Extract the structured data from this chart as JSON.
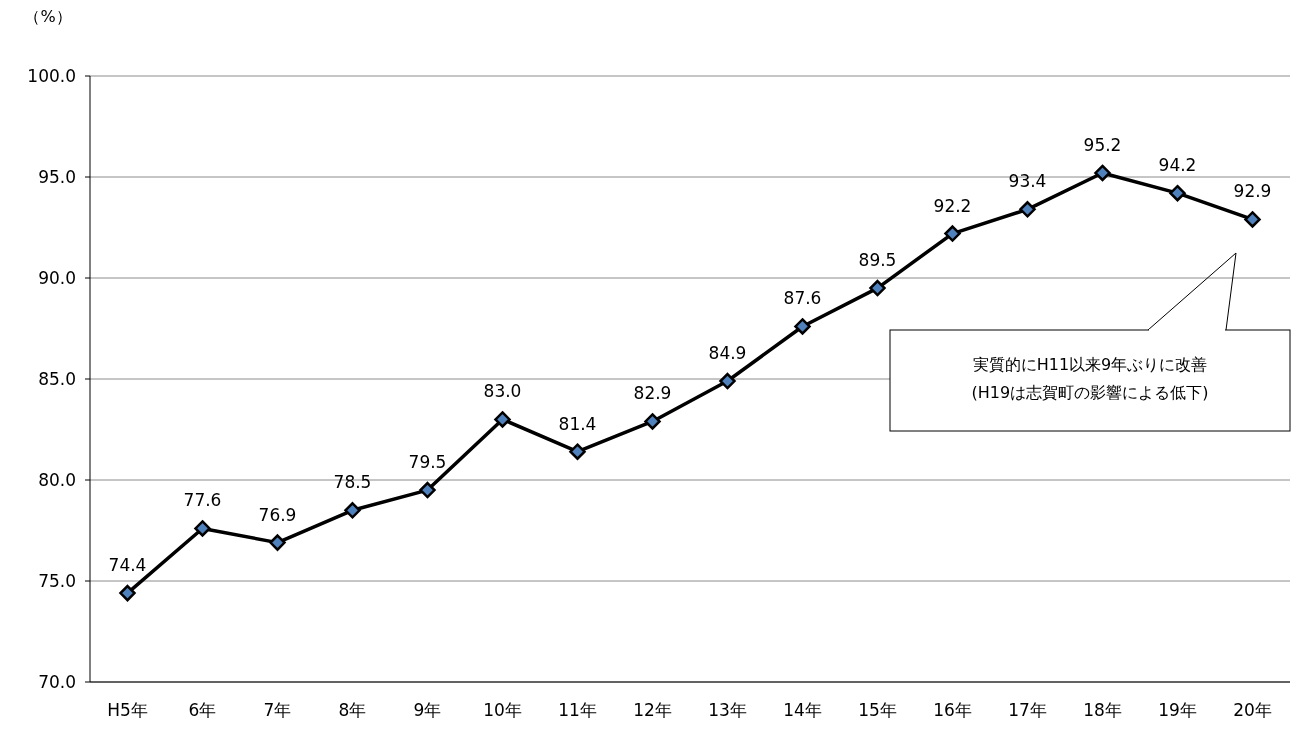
{
  "chart_data": {
    "type": "line",
    "ylabel": "（%）",
    "categories": [
      "H5年",
      "6年",
      "7年",
      "8年",
      "9年",
      "10年",
      "11年",
      "12年",
      "13年",
      "14年",
      "15年",
      "16年",
      "17年",
      "18年",
      "19年",
      "20年"
    ],
    "series": [
      {
        "color": "#000000",
        "values": [
          74.4,
          77.6,
          76.9,
          78.5,
          79.5,
          83.0,
          81.4,
          82.9,
          84.9,
          87.6,
          89.5,
          92.2,
          93.4,
          95.2,
          94.2,
          92.9
        ],
        "value_labels": [
          "74.4",
          "77.6",
          "76.9",
          "78.5",
          "79.5",
          "83.0",
          "81.4",
          "82.9",
          "84.9",
          "87.6",
          "89.5",
          "92.2",
          "93.4",
          "95.2",
          "94.2",
          "92.9"
        ]
      }
    ],
    "ylim": [
      70,
      100
    ],
    "yticks": [
      {
        "value": 70,
        "label": "70.0"
      },
      {
        "value": 75,
        "label": "75.0"
      },
      {
        "value": 80,
        "label": "80.0"
      },
      {
        "value": 85,
        "label": "85.0"
      },
      {
        "value": 90,
        "label": "90.0"
      },
      {
        "value": 95,
        "label": "95.0"
      },
      {
        "value": 100,
        "label": "100.0"
      }
    ],
    "grid": "y",
    "marker": "diamond",
    "line_style": "solid",
    "annotations": [
      "実質的にH11以来9年ぶりに改善",
      "(H19は志賀町の影響による低下)"
    ]
  }
}
